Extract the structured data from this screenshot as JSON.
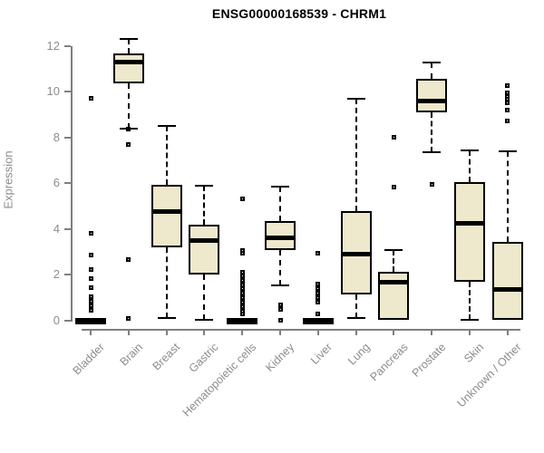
{
  "title": "ENSG00000168539 - CHRM1",
  "colors": {
    "box_fill": "#EEE8CD",
    "box_stroke": "#000000",
    "axis": "#7f7f7f",
    "axis_text": "#8c8c8c",
    "title_text": "#000000"
  },
  "chart_data": {
    "type": "boxplot",
    "title": "ENSG00000168539 - CHRM1",
    "xlabel": "",
    "ylabel": "Expression",
    "ylim": [
      0,
      12
    ],
    "yticks": [
      0,
      2,
      4,
      6,
      8,
      10,
      12
    ],
    "grid": false,
    "legend": false,
    "categories": [
      "Bladder",
      "Brain",
      "Breast",
      "Gastric",
      "Hematopoietic cells",
      "Kidney",
      "Liver",
      "Lung",
      "Pancreas",
      "Prostate",
      "Skin",
      "Unknown / Other"
    ],
    "series": [
      {
        "category": "Bladder",
        "whisker_low": 0,
        "q1": 0,
        "median": 0,
        "q3": 0,
        "whisker_high": 0,
        "outliers": [
          9.7,
          3.8,
          2.85,
          2.25,
          1.85,
          1.45,
          1.05,
          0.85,
          0.75,
          0.65,
          0.55,
          0.45
        ]
      },
      {
        "category": "Brain",
        "whisker_low": 8.4,
        "q1": 10.35,
        "median": 11.3,
        "q3": 11.65,
        "whisker_high": 12.3,
        "outliers": [
          8.35,
          7.7,
          2.65,
          0.1
        ]
      },
      {
        "category": "Breast",
        "whisker_low": 0.1,
        "q1": 3.2,
        "median": 4.75,
        "q3": 5.95,
        "whisker_high": 8.5,
        "outliers": []
      },
      {
        "category": "Gastric",
        "whisker_low": 0.05,
        "q1": 2.0,
        "median": 3.5,
        "q3": 4.2,
        "whisker_high": 5.9,
        "outliers": []
      },
      {
        "category": "Hematopoietic cells",
        "whisker_low": 0,
        "q1": 0,
        "median": 0,
        "q3": 0,
        "whisker_high": 0,
        "outliers": [
          5.3,
          3.05,
          2.95,
          2.1,
          1.95,
          1.75,
          1.55,
          1.4,
          1.3,
          1.2,
          1.1,
          1.0,
          0.9,
          0.8,
          0.7,
          0.6,
          0.5,
          0.4,
          0.3
        ]
      },
      {
        "category": "Kidney",
        "whisker_low": 1.55,
        "q1": 3.1,
        "median": 3.6,
        "q3": 4.35,
        "whisker_high": 5.85,
        "outliers": [
          0.7,
          0.5,
          0.02
        ]
      },
      {
        "category": "Liver",
        "whisker_low": 0,
        "q1": 0,
        "median": 0,
        "q3": 0,
        "whisker_high": 0,
        "outliers": [
          2.95,
          1.6,
          1.4,
          1.2,
          1.0,
          0.8,
          0.3
        ]
      },
      {
        "category": "Lung",
        "whisker_low": 0.1,
        "q1": 1.15,
        "median": 2.9,
        "q3": 4.8,
        "whisker_high": 9.7,
        "outliers": []
      },
      {
        "category": "Pancreas",
        "whisker_low": 0.05,
        "q1": 0.05,
        "median": 1.7,
        "q3": 2.15,
        "whisker_high": 3.1,
        "outliers": [
          8.0,
          5.85
        ]
      },
      {
        "category": "Prostate",
        "whisker_low": 7.35,
        "q1": 9.1,
        "median": 9.6,
        "q3": 10.55,
        "whisker_high": 11.25,
        "outliers": [
          5.95
        ]
      },
      {
        "category": "Skin",
        "whisker_low": 0.05,
        "q1": 1.7,
        "median": 4.25,
        "q3": 6.05,
        "whisker_high": 7.45,
        "outliers": []
      },
      {
        "category": "Unknown / Other",
        "whisker_low": 0.05,
        "q1": 0.05,
        "median": 1.35,
        "q3": 3.45,
        "whisker_high": 7.4,
        "outliers": [
          10.25,
          9.95,
          9.8,
          9.65,
          9.5,
          9.2,
          8.7
        ]
      }
    ]
  }
}
